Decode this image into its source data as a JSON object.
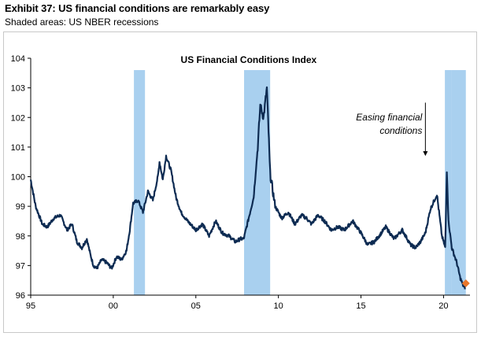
{
  "header": {
    "title": "Exhibit 37: US financial conditions are remarkably easy",
    "subtitle": "Shaded areas: US NBER recessions"
  },
  "chart_data": {
    "type": "line",
    "title": "US Financial Conditions Index",
    "xlabel": "",
    "ylabel": "",
    "xlim": [
      1995,
      2021.6
    ],
    "ylim": [
      96,
      104
    ],
    "x_ticks": [
      {
        "value": 1995,
        "label": "95"
      },
      {
        "value": 2000,
        "label": "00"
      },
      {
        "value": 2005,
        "label": "05"
      },
      {
        "value": 2010,
        "label": "10"
      },
      {
        "value": 2015,
        "label": "15"
      },
      {
        "value": 2020,
        "label": "20"
      }
    ],
    "y_ticks": [
      96,
      97,
      98,
      99,
      100,
      101,
      102,
      103,
      104
    ],
    "recessions": [
      [
        2001.25,
        2001.92
      ],
      [
        2007.92,
        2009.5
      ],
      [
        2020.08,
        2020.5
      ],
      [
        2020.5,
        2021.35
      ]
    ],
    "series": [
      {
        "name": "US Financial Conditions Index",
        "color": "#0d2b52",
        "x": [
          1995.0,
          1995.3,
          1995.7,
          1996.0,
          1996.4,
          1996.8,
          1997.2,
          1997.5,
          1997.8,
          1998.1,
          1998.4,
          1998.6,
          1998.8,
          1999.0,
          1999.3,
          1999.6,
          1999.9,
          2000.2,
          2000.5,
          2000.8,
          2001.0,
          2001.2,
          2001.5,
          2001.8,
          2002.1,
          2002.4,
          2002.7,
          2002.8,
          2003.0,
          2003.2,
          2003.5,
          2003.8,
          2004.1,
          2004.5,
          2005.0,
          2005.4,
          2005.8,
          2006.2,
          2006.6,
          2007.0,
          2007.4,
          2007.7,
          2007.9,
          2008.2,
          2008.5,
          2008.75,
          2008.9,
          2009.1,
          2009.3,
          2009.5,
          2009.8,
          2010.2,
          2010.6,
          2011.0,
          2011.4,
          2011.7,
          2012.0,
          2012.4,
          2012.8,
          2013.2,
          2013.6,
          2014.0,
          2014.5,
          2015.0,
          2015.4,
          2015.8,
          2016.1,
          2016.5,
          2017.0,
          2017.5,
          2018.0,
          2018.3,
          2018.6,
          2018.9,
          2019.2,
          2019.6,
          2019.9,
          2020.1,
          2020.2,
          2020.3,
          2020.5,
          2020.8,
          2021.0,
          2021.2,
          2021.3
        ],
        "values": [
          99.9,
          99.0,
          98.4,
          98.3,
          98.6,
          98.7,
          98.2,
          98.4,
          97.8,
          97.6,
          97.9,
          97.4,
          97.0,
          96.9,
          97.2,
          97.1,
          96.9,
          97.3,
          97.2,
          97.5,
          98.2,
          99.1,
          99.2,
          98.8,
          99.5,
          99.2,
          100.0,
          100.5,
          99.9,
          100.7,
          100.2,
          99.3,
          98.8,
          98.5,
          98.2,
          98.4,
          98.0,
          98.5,
          98.1,
          98.0,
          97.8,
          97.9,
          97.9,
          98.6,
          99.3,
          101.0,
          102.4,
          102.0,
          103.0,
          100.1,
          99.0,
          98.6,
          98.8,
          98.4,
          98.7,
          98.6,
          98.4,
          98.7,
          98.5,
          98.2,
          98.3,
          98.2,
          98.5,
          98.1,
          97.7,
          97.8,
          98.0,
          98.3,
          97.9,
          98.2,
          97.7,
          97.6,
          97.8,
          98.1,
          98.9,
          99.4,
          98.0,
          97.6,
          100.2,
          98.5,
          97.6,
          97.1,
          96.6,
          96.3,
          96.2
        ]
      }
    ],
    "last_point": {
      "x": 2021.35,
      "value": 96.4,
      "color": "#e8762b"
    },
    "annotation": {
      "text_line1": "Easing financial",
      "text_line2": "conditions",
      "arrow_x": 2018.9,
      "arrow_from": 102.5,
      "arrow_to": 100.7
    }
  }
}
